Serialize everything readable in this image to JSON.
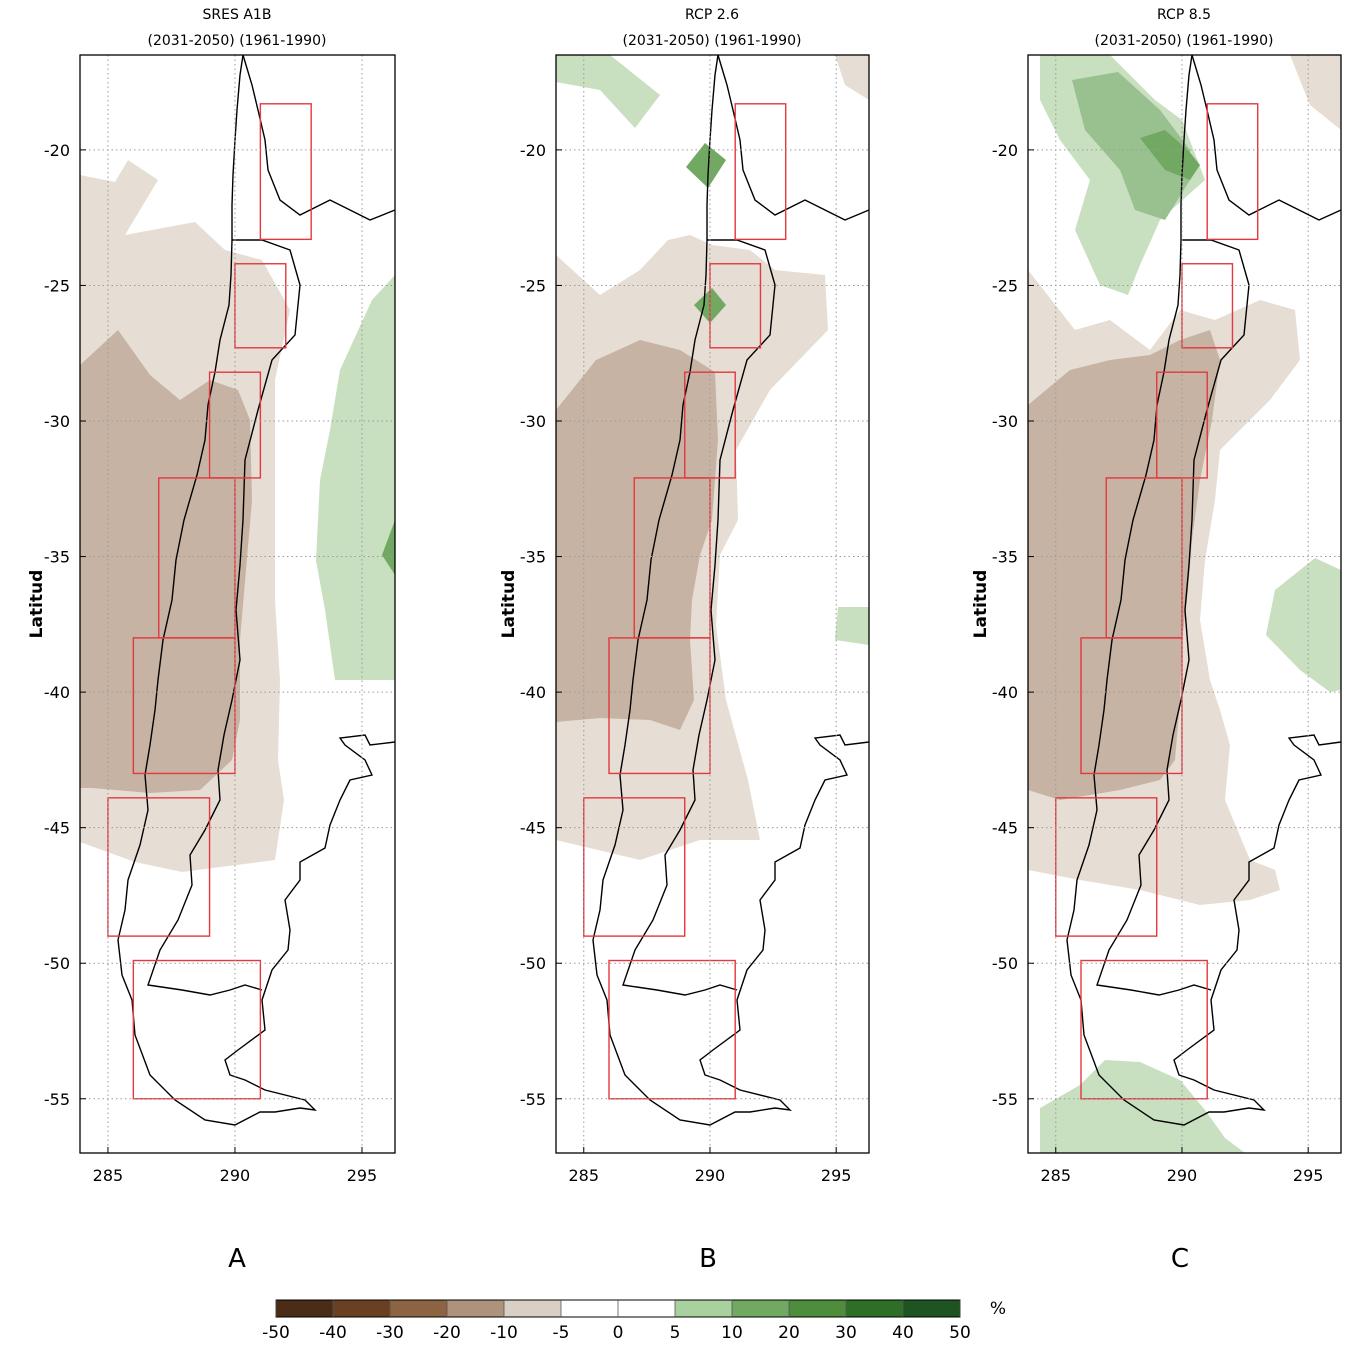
{
  "y_axis_label": "Latitud",
  "x_ticks": [
    "285",
    "290",
    "295"
  ],
  "y_ticks": [
    "-20",
    "-25",
    "-30",
    "-35",
    "-40",
    "-45",
    "-50",
    "-55"
  ],
  "panels": [
    {
      "title_line1": "SRES A1B",
      "title_line2": "(2031-2050) (1961-1990)",
      "letter": "A"
    },
    {
      "title_line1": "RCP 2.6",
      "title_line2": "(2031-2050) (1961-1990)",
      "letter": "B"
    },
    {
      "title_line1": "RCP 8.5",
      "title_line2": "(2031-2050) (1961-1990)",
      "letter": "C"
    }
  ],
  "colorbar": {
    "unit": "%",
    "tick_labels": [
      "-50",
      "-40",
      "-30",
      "-20",
      "-10",
      "-5",
      "0",
      "5",
      "10",
      "20",
      "30",
      "40",
      "50"
    ],
    "colors": [
      "#4a2c17",
      "#6b3f22",
      "#8c6442",
      "#ad937b",
      "#d9cfc4",
      "#ffffff",
      "#ffffff",
      "#a9d1a0",
      "#72a962",
      "#4e8d3c",
      "#2e6e27",
      "#1e5422"
    ]
  },
  "region_boxes_lonlat": [
    [
      291.0,
      -18.3,
      293.0,
      -23.3
    ],
    [
      290.0,
      -24.2,
      292.0,
      -27.3
    ],
    [
      289.0,
      -28.2,
      291.0,
      -32.1
    ],
    [
      287.0,
      -32.1,
      290.0,
      -38.0
    ],
    [
      286.0,
      -38.0,
      290.0,
      -43.0
    ],
    [
      285.0,
      -43.9,
      289.0,
      -49.0
    ],
    [
      286.0,
      -49.9,
      291.0,
      -55.0
    ]
  ],
  "map_extent": {
    "lon_min": 283.9,
    "lon_max": 296.3,
    "lat_min": -57.0,
    "lat_max": -16.5
  }
}
